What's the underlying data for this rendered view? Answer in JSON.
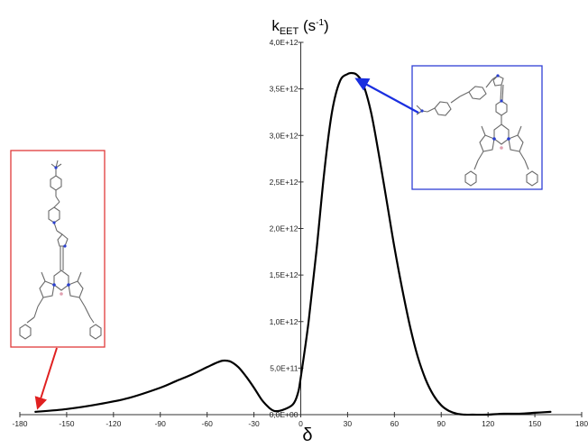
{
  "colors": {
    "curve": "#000000",
    "axis": "#333333",
    "left_inset_border": "#e03a3a",
    "left_arrow": "#e02020",
    "right_inset_border": "#2f3fd6",
    "right_arrow": "#1a2fe0",
    "molecule_bond": "#6a6a6a",
    "nitrogen": "#2a3fd0",
    "boron": "#e0a0b0"
  },
  "icons": {
    "left_inset": "molecule-structure-icon",
    "right_inset": "molecule-structure-icon"
  },
  "chart_data": {
    "type": "line",
    "title": "",
    "ylabel": {
      "base": "k",
      "subscript": "EET",
      "unit_open": " (s",
      "superscript": "-1",
      "unit_close": ")"
    },
    "xlabel": "δ",
    "xlim": [
      -180,
      180
    ],
    "ylim": [
      0,
      4000000000000.0
    ],
    "x_ticks": [
      -180,
      -150,
      -120,
      -90,
      -60,
      -30,
      0,
      30,
      60,
      90,
      120,
      150,
      180
    ],
    "x_tick_labels": [
      "-180",
      "-150",
      "-120",
      "-90",
      "-60",
      "-30",
      "0",
      "30",
      "60",
      "90",
      "120",
      "150",
      "180"
    ],
    "y_ticks": [
      0,
      500000000000.0,
      1000000000000.0,
      1500000000000.0,
      2000000000000.0,
      2500000000000.0,
      3000000000000.0,
      3500000000000.0,
      4000000000000.0
    ],
    "y_tick_labels": [
      "0,0E+00",
      "5,0E+11",
      "1,0E+12",
      "1,5E+12",
      "2,0E+12",
      "2,5E+12",
      "3,0E+12",
      "3,5E+12",
      "4,0E+12"
    ],
    "grid": false,
    "series": [
      {
        "x": [
          -170,
          -150,
          -130,
          -110,
          -90,
          -80,
          -70,
          -60,
          -55,
          -50,
          -45,
          -40,
          -35,
          -30,
          -25,
          -20,
          -17,
          -14,
          -10,
          -5,
          -2,
          0,
          5,
          10,
          15,
          20,
          25,
          30,
          33,
          36,
          40,
          45,
          50,
          55,
          60,
          65,
          70,
          75,
          80,
          85,
          90,
          95,
          100,
          105,
          110,
          120,
          130,
          140,
          150,
          160
        ],
        "y": [
          30000000000.0,
          60000000000.0,
          110000000000.0,
          180000000000.0,
          290000000000.0,
          360000000000.0,
          430000000000.0,
          510000000000.0,
          550000000000.0,
          580000000000.0,
          570000000000.0,
          510000000000.0,
          410000000000.0,
          290000000000.0,
          160000000000.0,
          70000000000.0,
          40000000000.0,
          40000000000.0,
          60000000000.0,
          110000000000.0,
          220000000000.0,
          400000000000.0,
          1000000000000.0,
          1750000000000.0,
          2600000000000.0,
          3250000000000.0,
          3580000000000.0,
          3660000000000.0,
          3670000000000.0,
          3650000000000.0,
          3550000000000.0,
          3250000000000.0,
          2800000000000.0,
          2300000000000.0,
          1800000000000.0,
          1350000000000.0,
          950000000000.0,
          620000000000.0,
          380000000000.0,
          210000000000.0,
          100000000000.0,
          40000000000.0,
          10000000000.0,
          0,
          0,
          0,
          10000000000.0,
          10000000000.0,
          20000000000.0,
          30000000000.0
        ]
      }
    ],
    "annotations": [
      {
        "name": "left-inset",
        "points_to": {
          "x": -172,
          "y": 30000000000.0
        }
      },
      {
        "name": "right-inset",
        "points_to": {
          "x": 33,
          "y": 3650000000000.0
        }
      }
    ]
  }
}
